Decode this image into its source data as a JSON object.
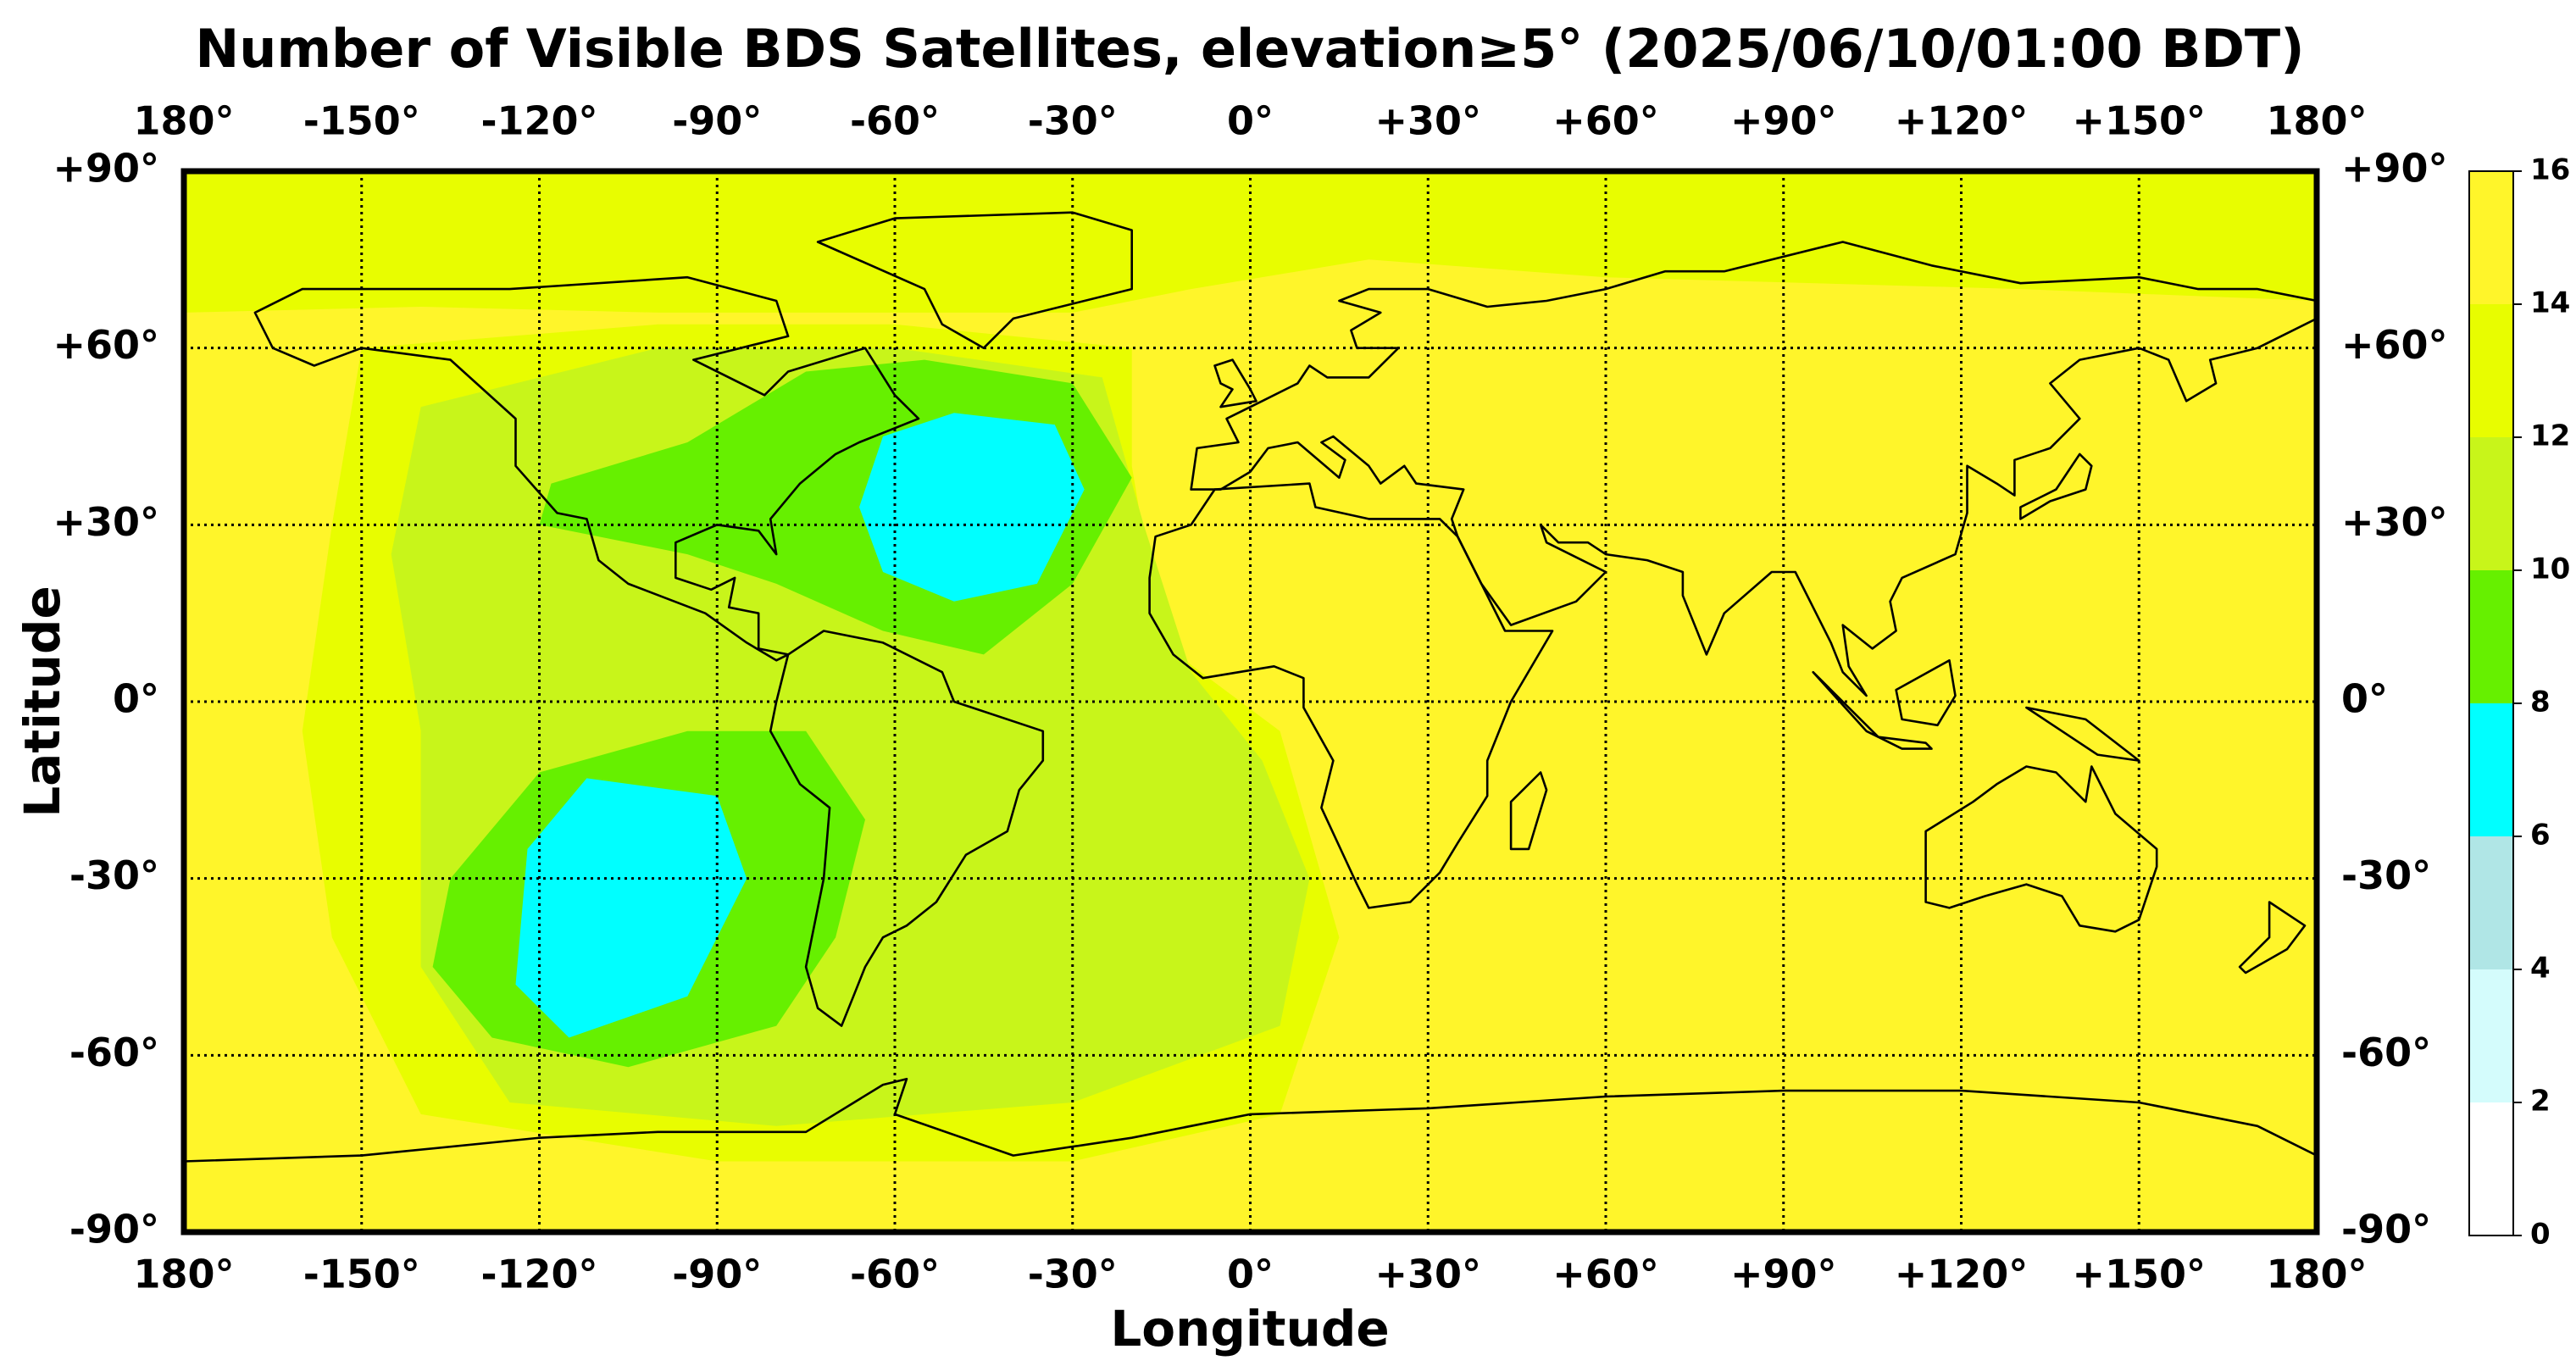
{
  "chart_data": {
    "type": "map",
    "title": "Number of Visible BDS Satellites, elevation≥5° (2025/06/10/01:00 BDT)",
    "x_label": "Longitude",
    "y_label": "Latitude",
    "xlim": [
      -180,
      180
    ],
    "ylim": [
      -90,
      90
    ],
    "xticks": [
      {
        "value": -180,
        "label": "180°"
      },
      {
        "value": -150,
        "label": "-150°"
      },
      {
        "value": -120,
        "label": "-120°"
      },
      {
        "value": -90,
        "label": "-90°"
      },
      {
        "value": -60,
        "label": "-60°"
      },
      {
        "value": -30,
        "label": "-30°"
      },
      {
        "value": 0,
        "label": "0°"
      },
      {
        "value": 30,
        "label": "+30°"
      },
      {
        "value": 60,
        "label": "+60°"
      },
      {
        "value": 90,
        "label": "+90°"
      },
      {
        "value": 120,
        "label": "+120°"
      },
      {
        "value": 150,
        "label": "+150°"
      },
      {
        "value": 180,
        "label": "180°"
      }
    ],
    "yticks": [
      {
        "value": -90,
        "label": "-90°"
      },
      {
        "value": -60,
        "label": "-60°"
      },
      {
        "value": -30,
        "label": "-30°"
      },
      {
        "value": 0,
        "label": "0°"
      },
      {
        "value": 30,
        "label": "+30°"
      },
      {
        "value": 60,
        "label": "+60°"
      },
      {
        "value": 90,
        "label": "+90°"
      }
    ],
    "grid": true,
    "colorbar": {
      "lim": [
        0,
        16
      ],
      "ticks": [
        0,
        2,
        4,
        6,
        8,
        10,
        12,
        14,
        16
      ],
      "colors": [
        "#ffffff",
        "#d4fcfc",
        "#b0e6e6",
        "#00ffff",
        "#66f000",
        "#c8f51a",
        "#e8fd00",
        "#fff52a"
      ]
    }
  }
}
